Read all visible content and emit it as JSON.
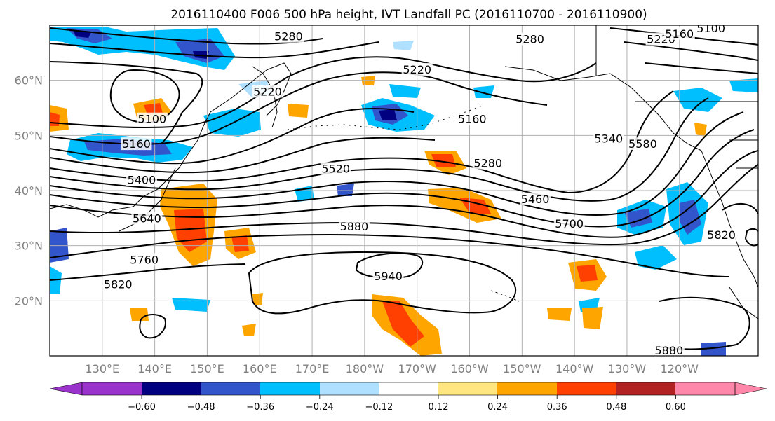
{
  "title": "2016110400 F006 500 hPa height, IVT Landfall PC (2016110700 - 2016110900)",
  "colors": {
    "purple": "#9933cc",
    "navy": "#000080",
    "blue": "#3355cc",
    "sky": "#00bfff",
    "light_sky": "#afe0ff",
    "white": "#ffffff",
    "yellow": "#ffe680",
    "orange": "#ffa500",
    "red_orange": "#ff4000",
    "dark_red": "#b22222",
    "pink": "#ff88aa"
  },
  "chart_data": {
    "type": "map",
    "projection": "equirectangular, Pacific centred",
    "extent": {
      "lon": [
        120,
        255
      ],
      "lat": [
        10,
        70
      ]
    },
    "lat_ticks": [
      {
        "lat": 60,
        "label": "60°N"
      },
      {
        "lat": 50,
        "label": "50°N"
      },
      {
        "lat": 40,
        "label": "40°N"
      },
      {
        "lat": 30,
        "label": "30°N"
      },
      {
        "lat": 20,
        "label": "20°N"
      }
    ],
    "lon_ticks": [
      {
        "lon": 130,
        "label": "130°E"
      },
      {
        "lon": 140,
        "label": "140°E"
      },
      {
        "lon": 150,
        "label": "150°E"
      },
      {
        "lon": 160,
        "label": "160°E"
      },
      {
        "lon": 170,
        "label": "170°E"
      },
      {
        "lon": 180,
        "label": "180°W"
      },
      {
        "lon": 190,
        "label": "170°W"
      },
      {
        "lon": 200,
        "label": "160°W"
      },
      {
        "lon": 210,
        "label": "150°W"
      },
      {
        "lon": 220,
        "label": "140°W"
      },
      {
        "lon": 230,
        "label": "130°W"
      },
      {
        "lon": 240,
        "label": "120°W"
      }
    ],
    "height_contour_labels": [
      {
        "text": "5280",
        "lon": 165.5,
        "lat": 68
      },
      {
        "text": "5280",
        "lon": 211.5,
        "lat": 67.5
      },
      {
        "text": "5220",
        "lon": 190,
        "lat": 62
      },
      {
        "text": "5220",
        "lon": 236.5,
        "lat": 67.5
      },
      {
        "text": "5160",
        "lon": 240,
        "lat": 68.5
      },
      {
        "text": "5100",
        "lon": 246,
        "lat": 69.5
      },
      {
        "text": "5100",
        "lon": 139.5,
        "lat": 53
      },
      {
        "text": "5160",
        "lon": 136.5,
        "lat": 48.5
      },
      {
        "text": "5160",
        "lon": 200.5,
        "lat": 53
      },
      {
        "text": "5220",
        "lon": 161.5,
        "lat": 58
      },
      {
        "text": "5400",
        "lon": 137.5,
        "lat": 42
      },
      {
        "text": "5520",
        "lon": 174.5,
        "lat": 44
      },
      {
        "text": "5280",
        "lon": 203.5,
        "lat": 45
      },
      {
        "text": "5460",
        "lon": 212.5,
        "lat": 38.5
      },
      {
        "text": "5340",
        "lon": 226.5,
        "lat": 49.5
      },
      {
        "text": "5580",
        "lon": 233,
        "lat": 48.5
      },
      {
        "text": "5640",
        "lon": 138.5,
        "lat": 35
      },
      {
        "text": "5700",
        "lon": 219,
        "lat": 34
      },
      {
        "text": "5880",
        "lon": 178,
        "lat": 33.5
      },
      {
        "text": "5760",
        "lon": 138,
        "lat": 27.5
      },
      {
        "text": "5820",
        "lon": 133,
        "lat": 23
      },
      {
        "text": "5940",
        "lon": 184.5,
        "lat": 24.5
      },
      {
        "text": "5880",
        "lon": 238,
        "lat": 11
      },
      {
        "text": "5820",
        "lon": 248,
        "lat": 32
      }
    ],
    "colorbar": {
      "ticks": [
        "−0.60",
        "−0.48",
        "−0.36",
        "−0.24",
        "−0.12",
        "0.12",
        "0.24",
        "0.36",
        "0.48",
        "0.60"
      ],
      "extend": "both"
    }
  }
}
